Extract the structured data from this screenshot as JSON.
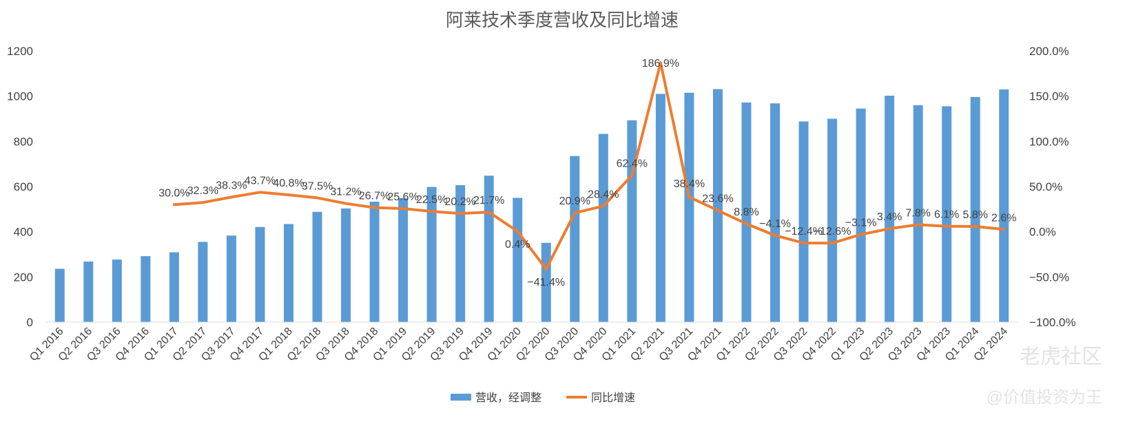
{
  "chart_data": {
    "type": "bar+line",
    "title": "阿莱技术季度营收及同比增速",
    "categories": [
      "Q1 2016",
      "Q2 2016",
      "Q3 2016",
      "Q4 2016",
      "Q1 2017",
      "Q2 2017",
      "Q3 2017",
      "Q4 2017",
      "Q1 2018",
      "Q2 2018",
      "Q3 2018",
      "Q4 2018",
      "Q1 2019",
      "Q2 2019",
      "Q3 2019",
      "Q4 2019",
      "Q1 2020",
      "Q2 2020",
      "Q3 2020",
      "Q4 2020",
      "Q1 2021",
      "Q2 2021",
      "Q3 2021",
      "Q4 2021",
      "Q1 2022",
      "Q2 2022",
      "Q3 2022",
      "Q4 2022",
      "Q1 2023",
      "Q2 2023",
      "Q3 2023",
      "Q4 2023",
      "Q1 2024",
      "Q2 2024"
    ],
    "series": [
      {
        "name": "营收，经调整",
        "type": "bar",
        "axis": "left",
        "color": "#5b9bd5",
        "values": [
          236,
          268,
          277,
          292,
          309,
          355,
          383,
          421,
          434,
          488,
          503,
          533,
          549,
          598,
          606,
          648,
          550,
          351,
          735,
          833,
          893,
          1010,
          1015,
          1031,
          972,
          968,
          888,
          900,
          945,
          1002,
          960,
          955,
          996,
          1030
        ]
      },
      {
        "name": "同比增速",
        "type": "line",
        "axis": "right",
        "color": "#ed7d31",
        "values": [
          null,
          null,
          null,
          null,
          30.0,
          32.3,
          38.3,
          43.7,
          40.8,
          37.5,
          31.2,
          26.7,
          25.6,
          22.5,
          20.2,
          21.7,
          0.4,
          -41.4,
          20.9,
          28.4,
          62.4,
          186.9,
          38.4,
          23.6,
          8.8,
          -4.1,
          -12.4,
          -12.6,
          -3.1,
          3.4,
          7.8,
          6.1,
          5.8,
          2.6
        ],
        "labels": [
          "",
          "",
          "",
          "",
          "30.0%",
          "32.3%",
          "38.3%",
          "43.7%",
          "40.8%",
          "37.5%",
          "31.2%",
          "26.7%",
          "25.6%",
          "22.5%",
          "20.2%",
          "21.7%",
          "0.4%",
          "−41.4%",
          "20.9%",
          "28.4%",
          "62.4%",
          "186.9%",
          "38.4%",
          "23.6%",
          "8.8%",
          "−4.1%",
          "−12.4%",
          "−12.6%",
          "−3.1%",
          "3.4%",
          "7.8%",
          "6.1%",
          "5.8%",
          "2.6%"
        ]
      }
    ],
    "y_left": {
      "min": 0,
      "max": 1200,
      "ticks": [
        "0",
        "200",
        "400",
        "600",
        "800",
        "1000",
        "1200"
      ]
    },
    "y_right": {
      "min": -100,
      "max": 200,
      "ticks": [
        "−100.0%",
        "−50.0%",
        "0.0%",
        "50.0%",
        "100.0%",
        "150.0%",
        "200.0%"
      ]
    },
    "grid": false,
    "legend_position": "bottom"
  },
  "watermark": {
    "line1": "老虎社区",
    "line2": "@价值投资为王"
  }
}
